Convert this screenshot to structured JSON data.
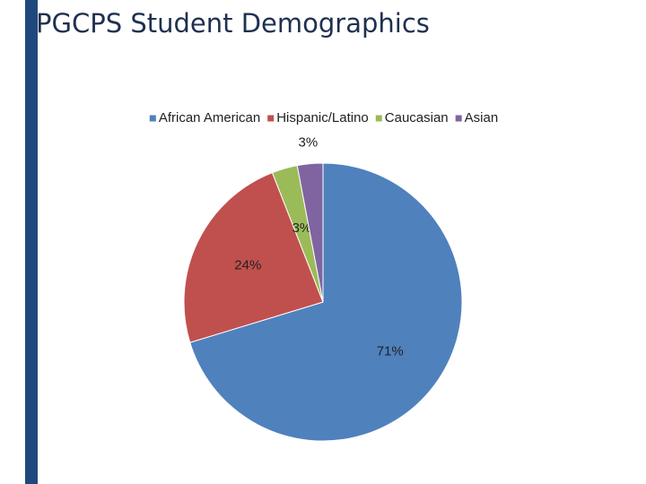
{
  "chart_data": {
    "type": "pie",
    "title": "PGCPS Student Demographics",
    "categories": [
      "African American",
      "Hispanic/Latino",
      "Caucasian",
      "Asian"
    ],
    "values": [
      71,
      24,
      3,
      3
    ],
    "value_labels": [
      "71%",
      "24%",
      "3%",
      "3%"
    ],
    "colors": [
      "#4f81bd",
      "#c0504d",
      "#9bbb59",
      "#8064a2"
    ],
    "legend": "top"
  }
}
